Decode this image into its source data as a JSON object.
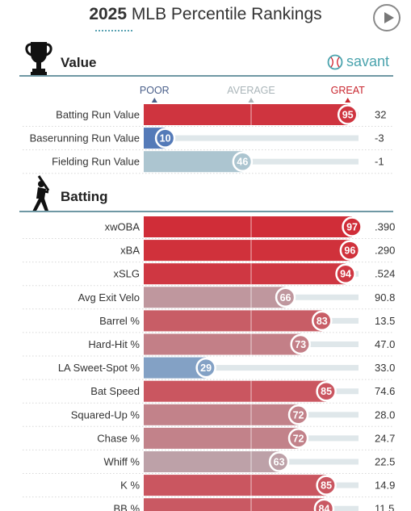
{
  "header": {
    "year": "2025",
    "title": "MLB Percentile Rankings"
  },
  "savant": {
    "label": "savant"
  },
  "icons": {
    "play": "play-icon",
    "trophy": "trophy-icon",
    "batter": "batter-icon",
    "savant": "baseball-icon"
  },
  "colors": {
    "great": "#d2232e",
    "poor": "#3c65b1",
    "average": "#b6cdd3",
    "accent": "#4aa3ad"
  },
  "scale": {
    "poor": "POOR",
    "average": "AVERAGE",
    "great": "GREAT"
  },
  "chart_data": {
    "type": "bar",
    "xlim": [
      0,
      100
    ],
    "sections": [
      {
        "name": "Value",
        "rows": [
          {
            "metric": "Batting Run Value",
            "percentile": 95,
            "value": "32"
          },
          {
            "metric": "Baserunning Run Value",
            "percentile": 10,
            "value": "-3"
          },
          {
            "metric": "Fielding Run Value",
            "percentile": 46,
            "value": "-1"
          }
        ]
      },
      {
        "name": "Batting",
        "rows": [
          {
            "metric": "xwOBA",
            "percentile": 97,
            "value": ".390"
          },
          {
            "metric": "xBA",
            "percentile": 96,
            "value": ".290"
          },
          {
            "metric": "xSLG",
            "percentile": 94,
            "value": ".524"
          },
          {
            "metric": "Avg Exit Velo",
            "percentile": 66,
            "value": "90.8"
          },
          {
            "metric": "Barrel %",
            "percentile": 83,
            "value": "13.5"
          },
          {
            "metric": "Hard-Hit %",
            "percentile": 73,
            "value": "47.0"
          },
          {
            "metric": "LA Sweet-Spot %",
            "percentile": 29,
            "value": "33.0"
          },
          {
            "metric": "Bat Speed",
            "percentile": 85,
            "value": "74.6"
          },
          {
            "metric": "Squared-Up %",
            "percentile": 72,
            "value": "28.0"
          },
          {
            "metric": "Chase %",
            "percentile": 72,
            "value": "24.7"
          },
          {
            "metric": "Whiff %",
            "percentile": 63,
            "value": "22.5"
          },
          {
            "metric": "K %",
            "percentile": 85,
            "value": "14.9"
          },
          {
            "metric": "BB %",
            "percentile": 84,
            "value": "11.5"
          }
        ]
      }
    ]
  }
}
